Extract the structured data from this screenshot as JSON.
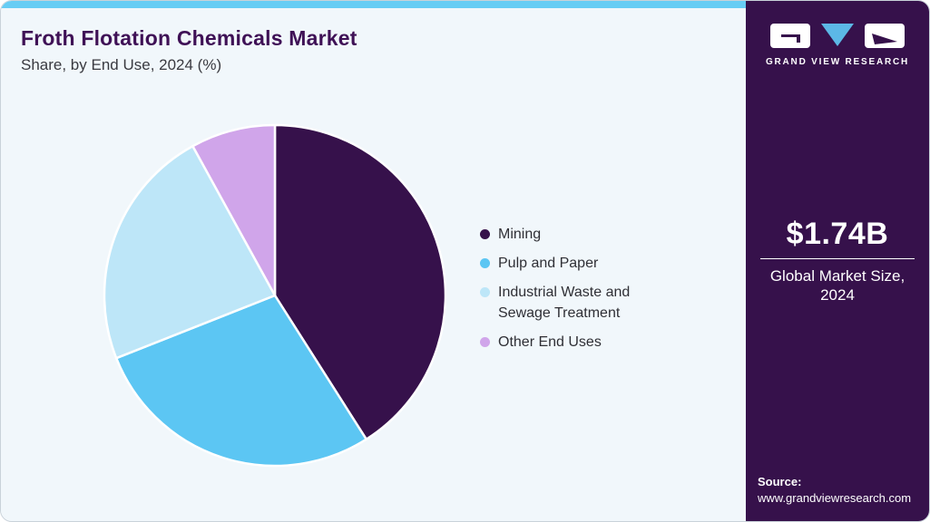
{
  "header": {
    "title": "Froth Flotation Chemicals Market",
    "subtitle": "Share, by End Use, 2024 (%)"
  },
  "sidebar": {
    "brand": "GRAND VIEW RESEARCH",
    "market_size_value": "$1.74B",
    "market_size_label": "Global Market Size, 2024",
    "source_label": "Source:",
    "source_url": "www.grandviewresearch.com"
  },
  "chart_data": {
    "type": "pie",
    "title": "Froth Flotation Chemicals Market Share, by End Use, 2024 (%)",
    "unit": "%",
    "labels": [
      "Mining",
      "Pulp and Paper",
      "Industrial Waste and Sewage Treatment",
      "Other End Uses"
    ],
    "values": [
      41,
      28,
      23,
      8
    ],
    "colors": [
      "#36114b",
      "#5cc6f3",
      "#bde6f8",
      "#d0a5ea"
    ],
    "start_angle_deg": 0,
    "direction": "clockwise",
    "legend_position": "right",
    "data_labels": false,
    "separator_color": "#ffffff"
  },
  "theme": {
    "accent_bar": "#67cdf4",
    "card_bg": "#f1f7fb",
    "sidebar_bg": "#36114b",
    "title_color": "#3f1156",
    "text_color": "#2f2f35",
    "logo_triangle": "#5cb8e6"
  }
}
